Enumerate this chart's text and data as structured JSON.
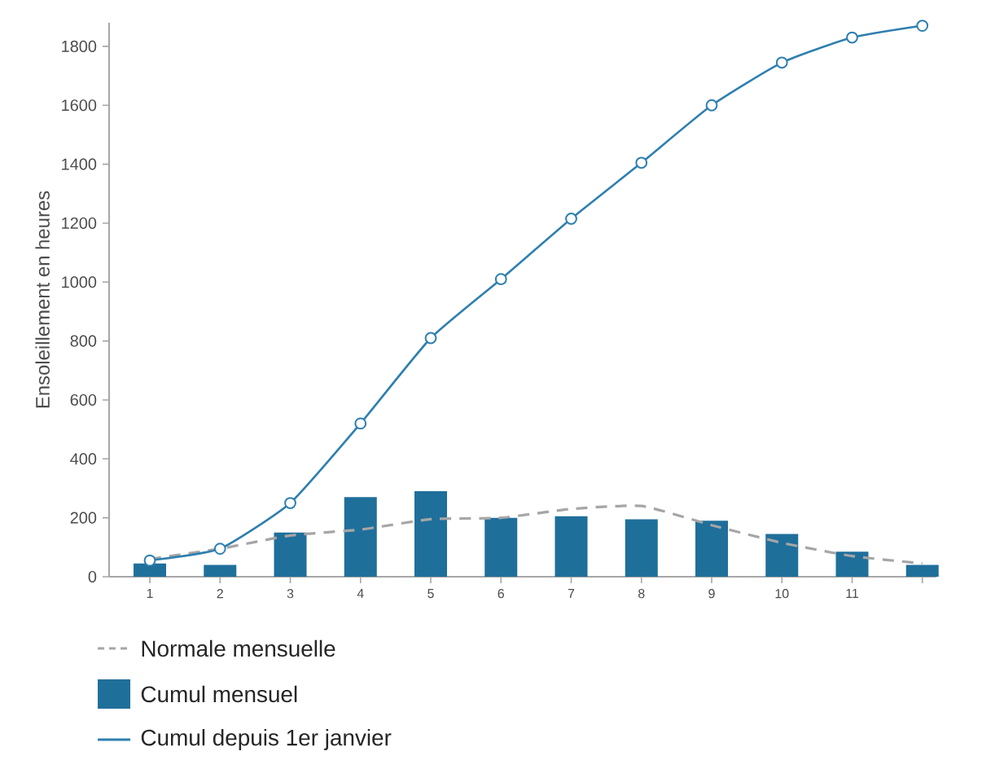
{
  "chart_data": {
    "type": "bar",
    "ylabel": "Ensoleillement en heures",
    "categories": [
      "1",
      "2",
      "3",
      "4",
      "5",
      "6",
      "7",
      "8",
      "9",
      "10",
      "11",
      null
    ],
    "series": [
      {
        "name": "Normale mensuelle",
        "type": "line",
        "line_style": "dashed",
        "marker": "none",
        "color": "#a6a6a6",
        "values": [
          60,
          95,
          140,
          160,
          195,
          200,
          230,
          240,
          175,
          115,
          70,
          45
        ]
      },
      {
        "name": "Cumul mensuel",
        "color": "#1f6f9b",
        "values": [
          45,
          40,
          150,
          270,
          290,
          200,
          205,
          195,
          190,
          145,
          85,
          40
        ]
      },
      {
        "name": "Cumul depuis 1er janvier",
        "type": "line",
        "line_style": "solid",
        "marker": "circle",
        "color": "#2e7fb0",
        "values": [
          55,
          95,
          250,
          520,
          810,
          1010,
          1215,
          1405,
          1600,
          1745,
          1830,
          1870
        ]
      }
    ],
    "ylim": [
      0,
      1880
    ],
    "yticks": [
      0,
      200,
      400,
      600,
      800,
      1000,
      1200,
      1400,
      1600,
      1800
    ],
    "grid": false,
    "legend": "bottom left"
  }
}
